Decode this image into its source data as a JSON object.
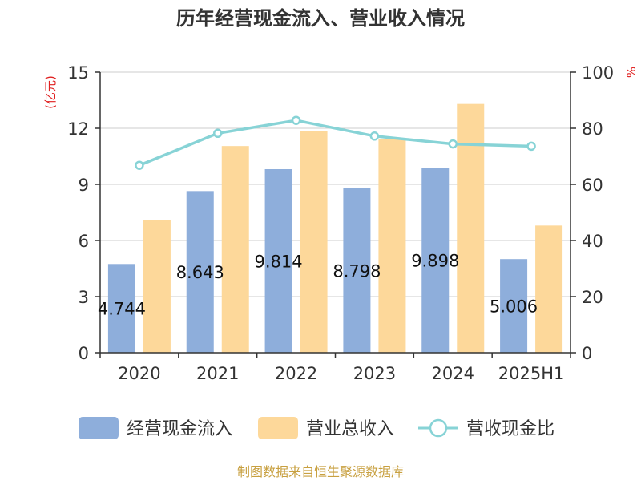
{
  "chart_data": {
    "type": "bar",
    "title": "历年经营现金流入、营业收入情况",
    "categories": [
      "2020",
      "2021",
      "2022",
      "2023",
      "2024",
      "2025H1"
    ],
    "y_left": {
      "unit": "(亿元)",
      "ylim": [
        0,
        15
      ],
      "ticks": [
        "0",
        "3",
        "6",
        "9",
        "12",
        "15"
      ]
    },
    "y_right": {
      "unit": "%",
      "ylim": [
        0,
        100
      ],
      "ticks": [
        "0",
        "20",
        "40",
        "60",
        "80",
        "100"
      ]
    },
    "series": [
      {
        "name": "经营现金流入",
        "type": "bar",
        "axis": "left",
        "color": "#8eaedb",
        "values": [
          4.744,
          8.643,
          9.814,
          8.798,
          9.898,
          5.006
        ],
        "labels": [
          "4.744",
          "8.643",
          "9.814",
          "8.798",
          "9.898",
          "5.006"
        ]
      },
      {
        "name": "营业总收入",
        "type": "bar",
        "axis": "left",
        "color": "#fdd89a",
        "values": [
          7.1,
          11.05,
          11.85,
          11.4,
          13.3,
          6.8
        ]
      },
      {
        "name": "营收现金比",
        "type": "line",
        "axis": "right",
        "color": "#87d3d6",
        "values": [
          66.8,
          78.2,
          82.8,
          77.2,
          74.4,
          73.6
        ]
      }
    ],
    "grid": true,
    "legend_position": "bottom",
    "source": "制图数据来自恒生聚源数据库"
  }
}
